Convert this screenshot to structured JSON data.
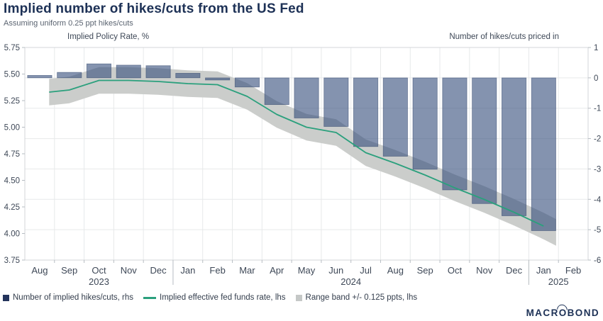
{
  "header": {
    "title": "Implied number of hikes/cuts from the US Fed",
    "subtitle": "Assuming uniform 0.25 ppt hikes/cuts"
  },
  "axes": {
    "left_title": "Implied Policy Rate, %",
    "right_title": "Number of hikes/cuts priced in",
    "left_ticks": [
      "5.75",
      "5.50",
      "5.25",
      "5.00",
      "4.75",
      "4.50",
      "4.25",
      "4.00",
      "3.75"
    ],
    "left_tick_values": [
      5.75,
      5.5,
      5.25,
      5.0,
      4.75,
      4.5,
      4.25,
      4.0,
      3.75
    ],
    "right_ticks": [
      "1",
      "0",
      "-1",
      "-2",
      "-3",
      "-4",
      "-5",
      "-6"
    ],
    "right_tick_values": [
      1,
      0,
      -1,
      -2,
      -3,
      -4,
      -5,
      -6
    ]
  },
  "chart_data": {
    "type": "combo-bar-line-band",
    "categories": [
      "Aug",
      "Sep",
      "Oct",
      "Nov",
      "Dec",
      "Jan",
      "Feb",
      "Mar",
      "Apr",
      "May",
      "Jun",
      "Jul",
      "Aug",
      "Sep",
      "Oct",
      "Nov",
      "Dec",
      "Jan",
      "Feb"
    ],
    "years": [
      {
        "label": "2023",
        "from": 0,
        "to": 4
      },
      {
        "label": "2024",
        "from": 5,
        "to": 16
      },
      {
        "label": "2025",
        "from": 17,
        "to": 18
      }
    ],
    "left_axis": {
      "min": 3.75,
      "max": 5.75,
      "step": 0.25
    },
    "right_axis": {
      "min": -6,
      "max": 1,
      "step": 1
    },
    "grid": {
      "horizontal_at_right_ints": [
        0,
        -1,
        -2,
        -3,
        -4,
        -5
      ],
      "vertical_month_boundaries": true
    },
    "series": [
      {
        "name": "Number of implied hikes/cuts, rhs",
        "type": "bar",
        "axis": "right",
        "values": [
          0.08,
          0.18,
          0.46,
          0.42,
          0.4,
          0.15,
          -0.07,
          -0.3,
          -0.88,
          -1.32,
          -1.6,
          -2.26,
          -2.58,
          -3.01,
          -3.69,
          -4.14,
          -4.54,
          -5.03,
          null
        ]
      },
      {
        "name": "Implied effective fed funds rate, lhs",
        "type": "line",
        "axis": "left",
        "points": [
          [
            0.32,
            5.33
          ],
          [
            1,
            5.35
          ],
          [
            2,
            5.44
          ],
          [
            3,
            5.44
          ],
          [
            4,
            5.43
          ],
          [
            5,
            5.41
          ],
          [
            6,
            5.4
          ],
          [
            7,
            5.29
          ],
          [
            8,
            5.12
          ],
          [
            9,
            5.0
          ],
          [
            10,
            4.95
          ],
          [
            11,
            4.76
          ],
          [
            12,
            4.66
          ],
          [
            13,
            4.55
          ],
          [
            14,
            4.43
          ],
          [
            15,
            4.32
          ],
          [
            16,
            4.2
          ],
          [
            17,
            4.07
          ]
        ]
      },
      {
        "name": "Range band +/- 0.125 ppts, lhs",
        "type": "band",
        "axis": "left",
        "half_width": 0.125,
        "tail_point": [
          17.42,
          4.01
        ]
      }
    ]
  },
  "legend": [
    {
      "label": "Number of implied hikes/cuts, rhs",
      "marker": "square",
      "color": "#24345c"
    },
    {
      "label": "Implied effective fed funds rate, lhs",
      "marker": "line",
      "color": "#2ba07d"
    },
    {
      "label": "Range band +/- 0.125 ppts, lhs",
      "marker": "square",
      "color": "#c5c8c7"
    }
  ],
  "logo": {
    "pre": "MACR",
    "o": "O",
    "post": "BOND"
  },
  "colors": {
    "title_navy": "#1d3156",
    "subtitle_gray": "#5a6370",
    "tick_text": "#3e4857",
    "bar_fill": "rgba(56,80,126,0.62)",
    "bar_edge": "rgba(44,64,104,0.55)",
    "line_green": "#2ba07d",
    "band_gray": "#cbcdcb",
    "grid": "#e7e9ea",
    "frame": "#d3d6d9",
    "tick_mark": "#b6bcc2"
  }
}
